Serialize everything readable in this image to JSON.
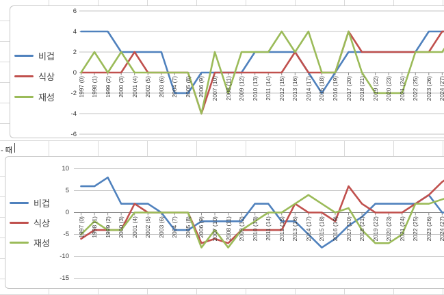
{
  "sheet": {
    "note_text": "- 때"
  },
  "colors": {
    "series_blue": "#4F81BD",
    "series_red": "#C0504D",
    "series_green": "#9BBB59",
    "gridline": "#c3c3c3",
    "axis": "#8c8c8c"
  },
  "chart_data": [
    {
      "type": "line",
      "title": "",
      "legend_position": "left",
      "grid": true,
      "ylim": [
        -6,
        6
      ],
      "y_ticks": [
        "6",
        "4",
        "2",
        "0",
        "-2",
        "-4",
        "-6"
      ],
      "y_tick_values": [
        6,
        4,
        2,
        0,
        -2,
        -4,
        -6
      ],
      "categories": [
        "1997 (0)",
        "1998 (1)",
        "1999 (2)",
        "2000 (3)",
        "2001 (4)",
        "2002 (5)",
        "2003 (6)",
        "2004 (7)",
        "2005 (8)",
        "2006 (9)",
        "2007 (10)",
        "2008 (11)",
        "2009 (12)",
        "2010 (13)",
        "2011 (14)",
        "2012 (15)",
        "2013 (16)",
        "2014 (17)",
        "2015 (18)",
        "2016 (19)",
        "2017 (20)",
        "2018 (21)",
        "2019 (22)",
        "2020 (23)",
        "2021 (24)",
        "2022 (25)",
        "2023 (26)",
        "2024 (27)",
        "2025 (28)"
      ],
      "series": [
        {
          "name": "비겁",
          "color": "#4F81BD",
          "values": [
            4,
            4,
            4,
            2,
            2,
            2,
            2,
            -2,
            -2,
            0,
            0,
            0,
            0,
            2,
            2,
            2,
            2,
            0,
            -2,
            0,
            2,
            2,
            2,
            2,
            2,
            2,
            4,
            4,
            4
          ]
        },
        {
          "name": "식상",
          "color": "#C0504D",
          "values": [
            0,
            0,
            0,
            0,
            2,
            0,
            0,
            0,
            0,
            -4,
            0,
            0,
            0,
            0,
            0,
            0,
            2,
            0,
            0,
            0,
            4,
            2,
            2,
            2,
            2,
            2,
            2,
            4,
            4
          ]
        },
        {
          "name": "재성",
          "color": "#9BBB59",
          "values": [
            0,
            2,
            0,
            2,
            0,
            0,
            0,
            0,
            0,
            -4,
            2,
            -2,
            2,
            2,
            2,
            4,
            2,
            4,
            0,
            0,
            4,
            0,
            -2,
            -2,
            -2,
            2,
            2,
            2,
            4
          ]
        }
      ]
    },
    {
      "type": "line",
      "title": "",
      "legend_position": "left",
      "grid": true,
      "ylim": [
        -15,
        10
      ],
      "y_ticks": [
        "10",
        "5",
        "0",
        "-5",
        "-10",
        "-15"
      ],
      "y_tick_values": [
        10,
        5,
        0,
        -5,
        -10,
        -15
      ],
      "categories": [
        "1997 (0)",
        "1998 (1)",
        "1999 (2)",
        "2000 (3)",
        "2001 (4)",
        "2002 (5)",
        "2003 (6)",
        "2004 (7)",
        "2005 (8)",
        "2006 (9)",
        "2007 (10)",
        "2008 (11)",
        "2009 (12)",
        "2010 (13)",
        "2011 (14)",
        "2012 (15)",
        "2013 (16)",
        "2014 (17)",
        "2015 (18)",
        "2016 (19)",
        "2017 (20)",
        "2018 (21)",
        "2019 (22)",
        "2020 (23)",
        "2021 (24)",
        "2022 (25)",
        "2023 (26)",
        "2024 (27)",
        "2025 (28)"
      ],
      "series": [
        {
          "name": "비겁",
          "color": "#4F81BD",
          "values": [
            6,
            6,
            8,
            2,
            2,
            2,
            0,
            -4,
            -4,
            -2,
            -2,
            -2,
            -2,
            2,
            2,
            -2,
            -2,
            -5,
            -8,
            -6,
            -3,
            -1,
            2,
            2,
            2,
            2,
            4,
            0,
            0
          ]
        },
        {
          "name": "식상",
          "color": "#C0504D",
          "values": [
            -6,
            -4,
            -4,
            -4,
            2,
            0,
            0,
            0,
            0,
            -7,
            -6,
            -7,
            -4,
            -4,
            -4,
            -4,
            2,
            0,
            0,
            -2,
            6,
            2,
            0,
            0,
            0,
            2,
            4,
            7,
            9
          ]
        },
        {
          "name": "재성",
          "color": "#9BBB59",
          "values": [
            -5,
            -2,
            -4,
            -4,
            0,
            0,
            0,
            0,
            0,
            -8,
            -4,
            -8,
            -4,
            -2,
            0,
            0,
            2,
            4,
            2,
            0,
            1,
            -4,
            -7,
            -7,
            -5,
            2,
            2,
            3,
            4
          ]
        }
      ]
    }
  ]
}
